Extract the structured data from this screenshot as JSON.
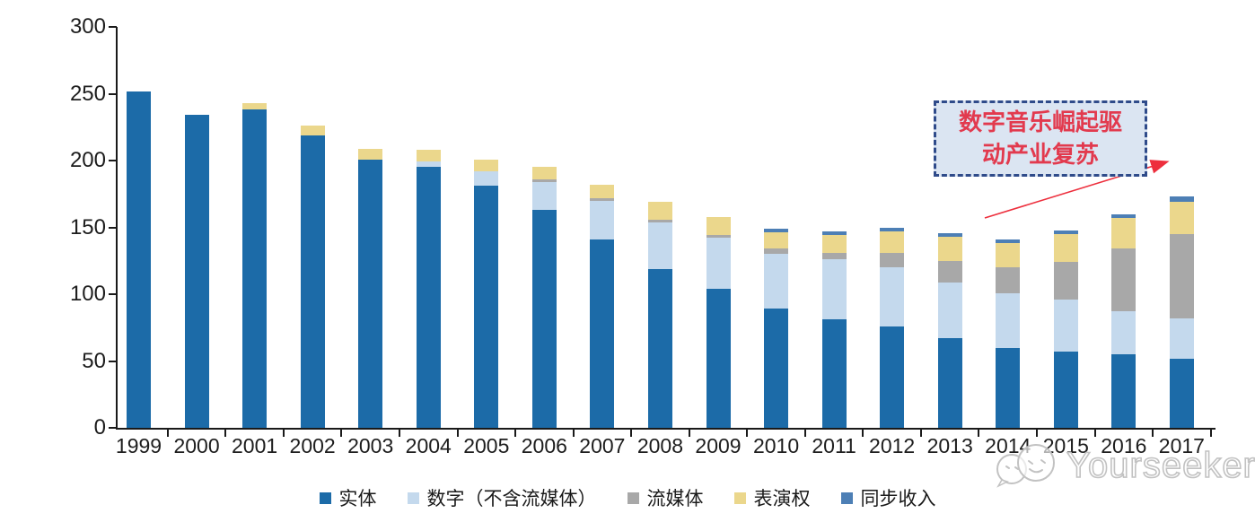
{
  "chart_data": {
    "type": "bar",
    "stacked": true,
    "title": "",
    "xlabel": "",
    "ylabel": "",
    "ylim": [
      0,
      300
    ],
    "y_ticks": [
      0,
      50,
      100,
      150,
      200,
      250,
      300
    ],
    "grid": false,
    "legend_position": "bottom",
    "categories": [
      "1999",
      "2000",
      "2001",
      "2002",
      "2003",
      "2004",
      "2005",
      "2006",
      "2007",
      "2008",
      "2009",
      "2010",
      "2011",
      "2012",
      "2013",
      "2014",
      "2015",
      "2016",
      "2017"
    ],
    "series": [
      {
        "name": "实体",
        "color": "#1c6ba8",
        "values": [
          252,
          234,
          238,
          219,
          201,
          195,
          181,
          163,
          141,
          119,
          104,
          89,
          81,
          76,
          67,
          60,
          57,
          55,
          52
        ]
      },
      {
        "name": "数字（不含流媒体）",
        "color": "#c4d9ed",
        "values": [
          0,
          0,
          0,
          0,
          0,
          4,
          11,
          21,
          29,
          35,
          38,
          41,
          45,
          44,
          42,
          41,
          39,
          32,
          30
        ]
      },
      {
        "name": "流媒体",
        "color": "#a8a8a8",
        "values": [
          0,
          0,
          0,
          0,
          0,
          0,
          0,
          2,
          2,
          2,
          2,
          4,
          5,
          11,
          16,
          19,
          28,
          47,
          63
        ]
      },
      {
        "name": "表演权",
        "color": "#ebd78c",
        "values": [
          0,
          0,
          5,
          7,
          8,
          9,
          9,
          9,
          10,
          13,
          14,
          12,
          13,
          16,
          18,
          18,
          21,
          23,
          24
        ]
      },
      {
        "name": "同步收入",
        "color": "#4d7fb5",
        "values": [
          0,
          0,
          0,
          0,
          0,
          0,
          0,
          0,
          0,
          0,
          0,
          3,
          3,
          3,
          3,
          3,
          3,
          3,
          4
        ]
      }
    ],
    "totals": [
      252,
      234,
      243,
      226,
      209,
      208,
      201,
      195,
      182,
      169,
      158,
      149,
      147,
      150,
      146,
      141,
      148,
      160,
      173
    ]
  },
  "annotation": {
    "text": "数字音乐崛起驱动产业复苏",
    "text_color": "#e23a4e",
    "box_fill": "#dbe5f2",
    "box_border_color": "#2f4b8a",
    "arrow_color": "#ed2f3d"
  },
  "watermark": {
    "text": "Yourseeker"
  }
}
